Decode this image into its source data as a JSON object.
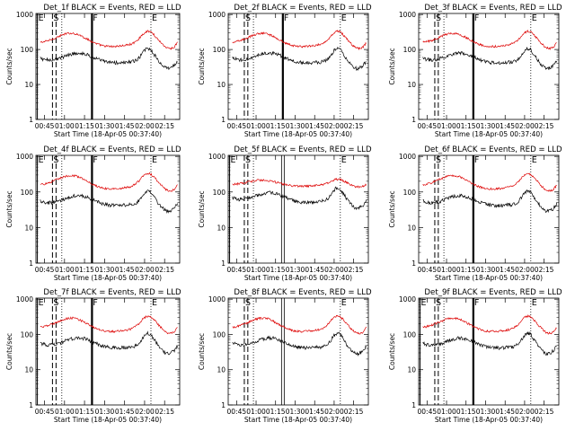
{
  "figure": {
    "ylabel": "Counts/sec",
    "xlabel": "Start Time (18-Apr-05 00:37:40)"
  },
  "colors": {
    "events": "#000000",
    "lld": "#dd0000"
  },
  "chart_data": [
    {
      "type": "line",
      "title": "Det_1f BLACK = Events, RED = LLD",
      "xlabel": "Start Time (18-Apr-05 00:37:40)",
      "ylabel": "Counts/sec",
      "x_ticks": [
        "00:45",
        "01:00",
        "01:15",
        "01:30",
        "01:45",
        "02:00",
        "02:15"
      ],
      "y_ticks": [
        "1",
        "10",
        "100",
        "1000"
      ],
      "ylim": [
        1,
        1000
      ],
      "yscale": "log",
      "markers": [
        {
          "label": "E",
          "style": "solid"
        },
        {
          "label": "S",
          "style": "dashed"
        },
        {
          "label": "",
          "style": "dashed"
        },
        {
          "label": "",
          "style": "dotted"
        },
        {
          "label": "F",
          "style": "solid-thick"
        },
        {
          "label": "E",
          "style": "dotted"
        }
      ],
      "series_keys": [
        "LLD",
        "Events"
      ]
    },
    {
      "type": "line",
      "title": "Det_2f BLACK = Events, RED = LLD",
      "xlabel": "Start Time (18-Apr-05 00:37:40)",
      "ylabel": "Counts/sec",
      "x_ticks": [
        "00:45",
        "01:00",
        "01:15",
        "01:30",
        "01:45",
        "02:00",
        "02:15"
      ],
      "y_ticks": [
        "1",
        "10",
        "100",
        "1000"
      ],
      "ylim": [
        1,
        1000
      ],
      "yscale": "log",
      "markers": [
        {
          "label": "S",
          "style": "dashed"
        },
        {
          "label": "",
          "style": "dashed"
        },
        {
          "label": "",
          "style": "dotted"
        },
        {
          "label": "F",
          "style": "solid-thick"
        },
        {
          "label": "E",
          "style": "dotted"
        }
      ],
      "series_keys": [
        "LLD",
        "Events"
      ]
    },
    {
      "type": "line",
      "title": "Det_3f BLACK = Events, RED = LLD",
      "xlabel": "Start Time (18-Apr-05 00:37:40)",
      "ylabel": "Counts/sec",
      "x_ticks": [
        "00:45",
        "01:00",
        "01:15",
        "01:30",
        "01:45",
        "02:00",
        "02:15"
      ],
      "y_ticks": [
        "1",
        "10",
        "100",
        "1000"
      ],
      "ylim": [
        1,
        1000
      ],
      "yscale": "log",
      "markers": [
        {
          "label": "S",
          "style": "dashed"
        },
        {
          "label": "",
          "style": "dashed"
        },
        {
          "label": "",
          "style": "dotted"
        },
        {
          "label": "F",
          "style": "solid-thick"
        },
        {
          "label": "E",
          "style": "dotted"
        }
      ],
      "series_keys": [
        "LLD",
        "Events"
      ]
    },
    {
      "type": "line",
      "title": "Det_4f BLACK = Events, RED = LLD",
      "xlabel": "Start Time (18-Apr-05 00:37:40)",
      "ylabel": "Counts/sec",
      "x_ticks": [
        "00:45",
        "01:00",
        "01:15",
        "01:30",
        "01:45",
        "02:00",
        "02:15"
      ],
      "y_ticks": [
        "1",
        "10",
        "100",
        "1000"
      ],
      "ylim": [
        1,
        1000
      ],
      "yscale": "log",
      "markers": [
        {
          "label": "E",
          "style": "solid"
        },
        {
          "label": "S",
          "style": "dashed"
        },
        {
          "label": "",
          "style": "dashed"
        },
        {
          "label": "",
          "style": "dotted"
        },
        {
          "label": "F",
          "style": "solid-thick"
        },
        {
          "label": "E",
          "style": "dotted"
        }
      ],
      "series_keys": [
        "LLD",
        "Events"
      ]
    },
    {
      "type": "line",
      "title": "Det_5f BLACK = Events, RED = LLD",
      "xlabel": "Start Time (18-Apr-05 00:37:40)",
      "ylabel": "Counts/sec",
      "x_ticks": [
        "00:45",
        "01:00",
        "01:15",
        "01:30",
        "01:45",
        "02:00",
        "02:15"
      ],
      "y_ticks": [
        "1",
        "10",
        "100",
        "1000"
      ],
      "ylim": [
        1,
        1000
      ],
      "yscale": "log",
      "markers": [
        {
          "label": "E",
          "style": "solid"
        },
        {
          "label": "S",
          "style": "dashed"
        },
        {
          "label": "",
          "style": "dashed"
        },
        {
          "label": "",
          "style": "dotted"
        },
        {
          "label": "",
          "style": "double"
        },
        {
          "label": "E",
          "style": "dotted"
        }
      ],
      "series_keys": [
        "LLD",
        "Events"
      ]
    },
    {
      "type": "line",
      "title": "Det_6f BLACK = Events, RED = LLD",
      "xlabel": "Start Time (18-Apr-05 00:37:40)",
      "ylabel": "Counts/sec",
      "x_ticks": [
        "00:45",
        "01:00",
        "01:15",
        "01:30",
        "01:45",
        "02:00",
        "02:15"
      ],
      "y_ticks": [
        "1",
        "10",
        "100",
        "1000"
      ],
      "ylim": [
        1,
        1000
      ],
      "yscale": "log",
      "markers": [
        {
          "label": "S",
          "style": "dashed"
        },
        {
          "label": "",
          "style": "dashed"
        },
        {
          "label": "",
          "style": "dotted"
        },
        {
          "label": "F",
          "style": "solid-thick"
        },
        {
          "label": "E",
          "style": "dotted"
        }
      ],
      "series_keys": [
        "LLD",
        "Events"
      ]
    },
    {
      "type": "line",
      "title": "Det_7f BLACK = Events, RED = LLD",
      "xlabel": "Start Time (18-Apr-05 00:37:40)",
      "ylabel": "Counts/sec",
      "x_ticks": [
        "00:45",
        "01:00",
        "01:15",
        "01:30",
        "01:45",
        "02:00",
        "02:15"
      ],
      "y_ticks": [
        "1",
        "10",
        "100",
        "1000"
      ],
      "ylim": [
        1,
        1000
      ],
      "yscale": "log",
      "markers": [
        {
          "label": "E",
          "style": "solid"
        },
        {
          "label": "S",
          "style": "dashed"
        },
        {
          "label": "",
          "style": "dashed"
        },
        {
          "label": "",
          "style": "dotted"
        },
        {
          "label": "F",
          "style": "solid-thick"
        },
        {
          "label": "E",
          "style": "dotted"
        }
      ],
      "series_keys": [
        "LLD",
        "Events"
      ]
    },
    {
      "type": "line",
      "title": "Det_8f BLACK = Events, RED = LLD",
      "xlabel": "Start Time (18-Apr-05 00:37:40)",
      "ylabel": "Counts/sec",
      "x_ticks": [
        "00:45",
        "01:00",
        "01:15",
        "01:30",
        "01:45",
        "02:00",
        "02:15"
      ],
      "y_ticks": [
        "1",
        "10",
        "100",
        "1000"
      ],
      "ylim": [
        1,
        1000
      ],
      "yscale": "log",
      "markers": [
        {
          "label": "S",
          "style": "dashed"
        },
        {
          "label": "",
          "style": "dashed"
        },
        {
          "label": "",
          "style": "dotted"
        },
        {
          "label": "",
          "style": "double"
        },
        {
          "label": "E",
          "style": "dotted"
        }
      ],
      "series_keys": [
        "LLD",
        "Events"
      ]
    },
    {
      "type": "line",
      "title": "Det_9f BLACK = Events, RED = LLD",
      "xlabel": "Start Time (18-Apr-05 00:37:40)",
      "ylabel": "Counts/sec",
      "x_ticks": [
        "00:45",
        "01:00",
        "01:15",
        "01:30",
        "01:45",
        "02:00",
        "02:15"
      ],
      "y_ticks": [
        "1",
        "10",
        "100",
        "1000"
      ],
      "ylim": [
        1,
        1000
      ],
      "yscale": "log",
      "markers": [
        {
          "label": "E",
          "style": "solid"
        },
        {
          "label": "S",
          "style": "dashed"
        },
        {
          "label": "",
          "style": "dashed"
        },
        {
          "label": "",
          "style": "dotted"
        },
        {
          "label": "F",
          "style": "solid-thick"
        },
        {
          "label": "E",
          "style": "dotted"
        }
      ],
      "series_keys": [
        "LLD",
        "Events"
      ]
    }
  ]
}
